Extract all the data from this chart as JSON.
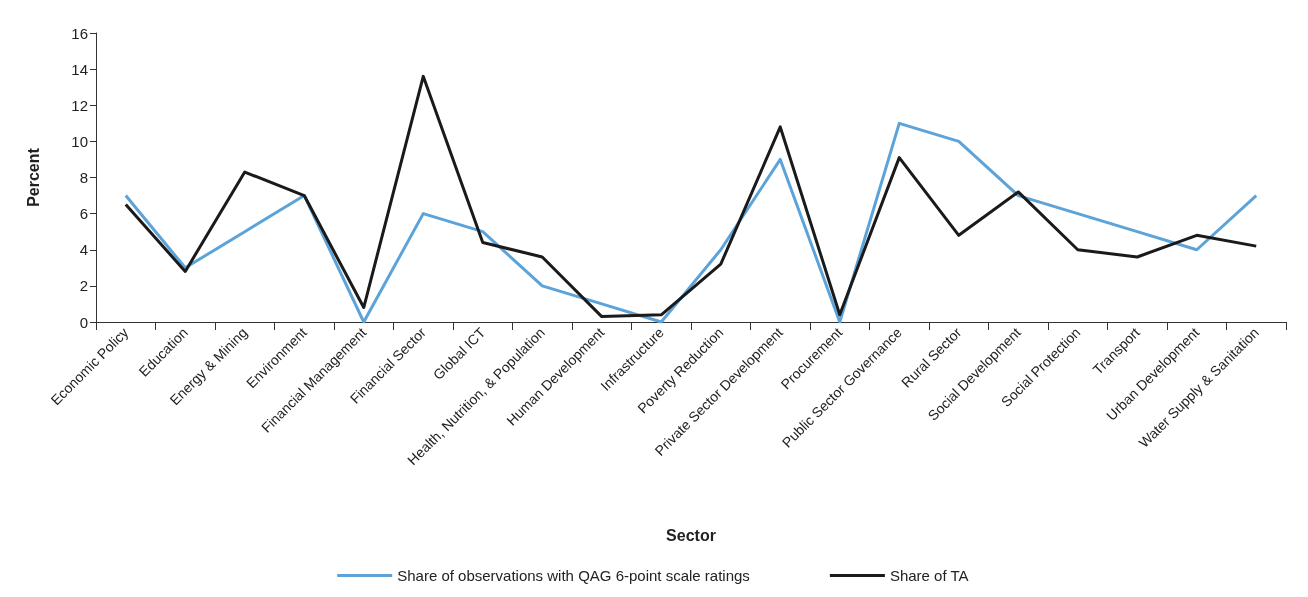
{
  "chart_data": {
    "type": "line",
    "xlabel": "Sector",
    "ylabel": "Percent",
    "categories": [
      "Economic Policy",
      "Education",
      "Energy & Mining",
      "Environment",
      "Financial Management",
      "Financial Sector",
      "Global ICT",
      "Health, Nutrition, & Population",
      "Human Development",
      "Infrastructure",
      "Poverty Reduction",
      "Private Sector Development",
      "Procurement",
      "Public Sector Governance",
      "Rural Sector",
      "Social Development",
      "Social Protection",
      "Transport",
      "Urban Development",
      "Water Supply & Sanitation"
    ],
    "series": [
      {
        "name": "Share of observations with QAG 6-point scale ratings",
        "color": "#5ba3d9",
        "values": [
          7,
          3,
          5,
          7,
          0,
          6,
          5,
          2,
          1,
          0,
          4,
          9,
          0,
          11,
          10,
          7,
          6,
          5,
          4,
          7
        ]
      },
      {
        "name": "Share of TA",
        "color": "#1a1a1a",
        "values": [
          6.5,
          2.8,
          8.3,
          7,
          0.8,
          13.6,
          4.4,
          3.6,
          0.3,
          0.4,
          3.2,
          10.8,
          0.4,
          9.1,
          4.8,
          7.2,
          4,
          3.6,
          4.8,
          4.2
        ]
      }
    ],
    "ylim": [
      0,
      16
    ],
    "yticks": [
      0,
      2,
      4,
      6,
      8,
      10,
      12,
      14,
      16
    ],
    "grid": false,
    "legend": "bottom",
    "marker": "none",
    "line_style": "solid"
  }
}
